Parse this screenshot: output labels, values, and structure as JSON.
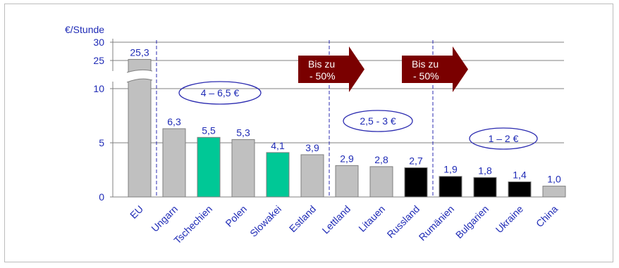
{
  "chart_data": {
    "type": "bar",
    "ylabel": "€/Stunde",
    "y_ticks": [
      "0",
      "5",
      "10",
      "25",
      "30"
    ],
    "ylim": [
      0,
      30
    ],
    "axis_break": true,
    "grid": true,
    "categories": [
      "EU",
      "Ungarn",
      "Tschechien",
      "Polen",
      "Slowakei",
      "Estland",
      "Lettland",
      "Litauen",
      "Russland",
      "Rumänien",
      "Bulgarien",
      "Ukraine",
      "China"
    ],
    "values": [
      25.3,
      6.3,
      5.5,
      5.3,
      4.1,
      3.9,
      2.9,
      2.8,
      2.7,
      1.9,
      1.8,
      1.4,
      1.0
    ],
    "value_labels": [
      "25,3",
      "6,3",
      "5,5",
      "5,3",
      "4,1",
      "3,9",
      "2,9",
      "2,8",
      "2,7",
      "1,9",
      "1,8",
      "1,4",
      "1,0"
    ],
    "bar_colors": [
      "#c0c0c0",
      "#c0c0c0",
      "#00c896",
      "#c0c0c0",
      "#00c896",
      "#c0c0c0",
      "#c0c0c0",
      "#c0c0c0",
      "#000000",
      "#000000",
      "#000000",
      "#000000",
      "#c0c0c0"
    ],
    "annotations": {
      "range_groups": [
        "4 – 6,5 €",
        "2,5 - 3 €",
        "1 – 2 €"
      ],
      "arrows": [
        {
          "line1": "Bis zu",
          "line2": "-  50%"
        },
        {
          "line1": "Bis zu",
          "line2": "-  50%"
        }
      ]
    },
    "colors": {
      "axis_text": "#1f2bb6",
      "arrow": "#7a0000",
      "grid": "#808080",
      "divider": "#2b2bb0"
    }
  }
}
